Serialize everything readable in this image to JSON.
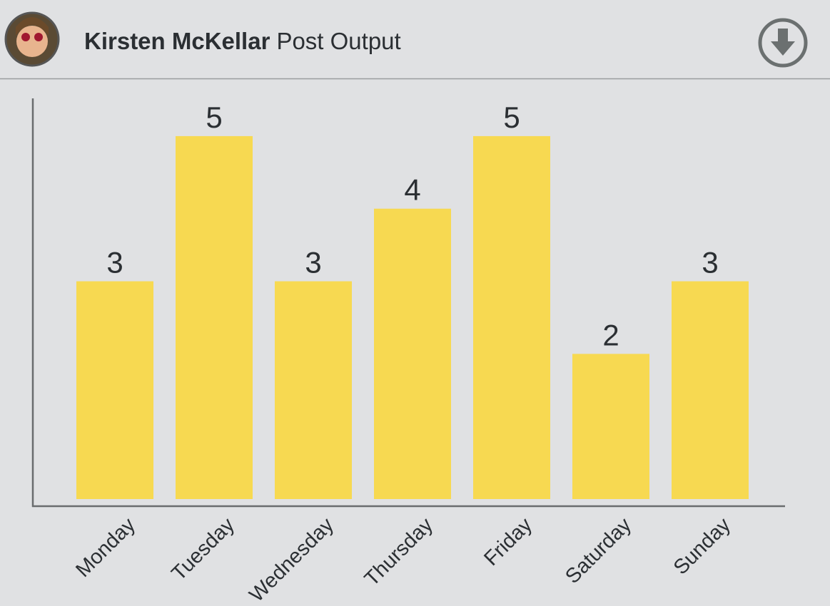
{
  "header": {
    "name": "Kirsten McKellar",
    "title": "Post Output"
  },
  "chart_data": {
    "type": "bar",
    "categories": [
      "Monday",
      "Tuesday",
      "Wednesday",
      "Thursday",
      "Friday",
      "Saturday",
      "Sunday"
    ],
    "values": [
      3,
      5,
      3,
      4,
      5,
      2,
      3
    ],
    "color": "#f7d951",
    "ylim": [
      0,
      5.5
    ]
  }
}
